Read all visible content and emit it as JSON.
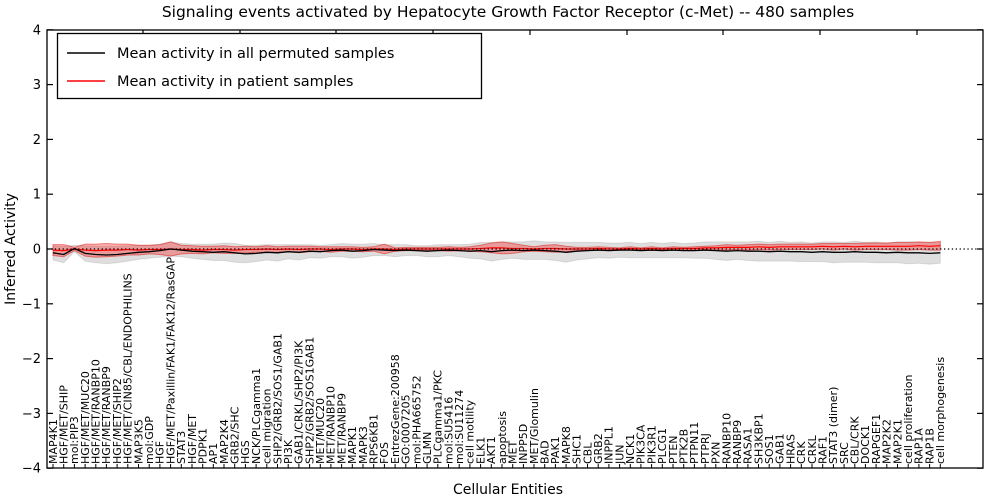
{
  "chart_data": {
    "type": "line",
    "title": "Signaling events activated by Hepatocyte Growth Factor Receptor (c-Met) -- 480 samples",
    "xlabel": "Cellular Entities",
    "ylabel": "Inferred Activity",
    "ylim": [
      -4,
      4
    ],
    "yticks": [
      4,
      3,
      2,
      1,
      0,
      -1,
      -2,
      -3,
      -4
    ],
    "grid": false,
    "legend_position": "upper left",
    "zero_line": {
      "style": "dotted",
      "color": "#000000"
    },
    "categories": [
      "MAP4K1",
      "HGF/MET/SHIP",
      "mol:PIP3",
      "HGF/MET/MUC20",
      "HGF/MET/RANBP10",
      "HGF/MET/RANBP9",
      "HGF/MET/SHIP2",
      "HGF/MET/CIN85/CBL/ENDOPHILINS",
      "MAP3K5",
      "mol:GDP",
      "HGF",
      "HGF/MET/Paxillin/FAK1/FAK12/RasGAP",
      "STAT3",
      "HGF/MET",
      "PDPK1",
      "AP1",
      "MAP2K4",
      "GRB2/SHC",
      "HGS",
      "NCK/PLCgamma1",
      "cell migration",
      "SHP2/GRB2/SOS1/GAB1",
      "PI3K",
      "GAB1/CRKL/SHP2/PI3K",
      "SHP2/GRB2/SOS1GAB1",
      "MET/MUC20",
      "MET/RANBP10",
      "MET/RANBP9",
      "MAPK1",
      "MAPK3",
      "RPS6KB1",
      "FOS",
      "EntrezGene:200958",
      "GO:0007205",
      "mol:PHA665752",
      "GLMN",
      "PLCgamma1/PKC",
      "mol:SU5416",
      "mol:SU11274",
      "cell motility",
      "ELK1",
      "AKT1",
      "apoptosis",
      "MET",
      "INPP5D",
      "MET/Glomulin",
      "BAD",
      "PAK1",
      "MAPK8",
      "SHC1",
      "CBL",
      "GRB2",
      "INPPL1",
      "JUN",
      "NCK1",
      "PIK3CA",
      "PIK3R1",
      "PLCG1",
      "PTEN",
      "PTK2B",
      "PTPN11",
      "PTPRJ",
      "PXN",
      "RANBP10",
      "RANBP9",
      "RASA1",
      "SH3KBP1",
      "SOS1",
      "GAB1",
      "HRAS",
      "CRK",
      "CRKL",
      "RAF1",
      "STAT3 (dimer)",
      "SRC",
      "CBL/CRK",
      "DOCK1",
      "RAPGEF1",
      "MAP2K2",
      "MAP2K1",
      "cell proliferation",
      "RAP1A",
      "RAP1B",
      "cell morphogenesis"
    ],
    "series": [
      {
        "name": "Mean activity in all permuted samples",
        "color": "#000000",
        "band_fill": "rgba(0,0,0,0.13)",
        "band_edge": "rgba(0,0,0,0.10)",
        "mean": [
          -0.07,
          -0.1,
          0.01,
          -0.08,
          -0.1,
          -0.11,
          -0.1,
          -0.08,
          -0.06,
          -0.05,
          -0.03,
          0.0,
          -0.02,
          -0.04,
          -0.05,
          -0.06,
          -0.05,
          -0.07,
          -0.09,
          -0.08,
          -0.06,
          -0.07,
          -0.05,
          -0.06,
          -0.04,
          -0.05,
          -0.03,
          -0.02,
          -0.04,
          -0.03,
          -0.01,
          -0.02,
          -0.03,
          -0.02,
          -0.03,
          -0.04,
          -0.03,
          -0.02,
          -0.03,
          -0.04,
          -0.03,
          -0.05,
          -0.03,
          -0.02,
          -0.03,
          -0.02,
          -0.03,
          -0.04,
          -0.06,
          -0.04,
          -0.03,
          -0.02,
          -0.03,
          -0.02,
          -0.02,
          -0.03,
          -0.02,
          -0.03,
          -0.02,
          -0.03,
          -0.03,
          -0.02,
          -0.03,
          -0.04,
          -0.03,
          -0.04,
          -0.04,
          -0.05,
          -0.04,
          -0.05,
          -0.05,
          -0.06,
          -0.05,
          -0.06,
          -0.06,
          -0.05,
          -0.06,
          -0.06,
          -0.07,
          -0.06,
          -0.07,
          -0.07,
          -0.08,
          -0.07
        ],
        "band_halfwidth": [
          0.13,
          0.15,
          0.06,
          0.14,
          0.15,
          0.16,
          0.15,
          0.14,
          0.13,
          0.12,
          0.12,
          0.13,
          0.12,
          0.13,
          0.14,
          0.15,
          0.16,
          0.17,
          0.16,
          0.15,
          0.14,
          0.15,
          0.13,
          0.14,
          0.12,
          0.12,
          0.11,
          0.12,
          0.13,
          0.12,
          0.11,
          0.1,
          0.11,
          0.1,
          0.09,
          0.1,
          0.11,
          0.1,
          0.11,
          0.13,
          0.15,
          0.17,
          0.16,
          0.15,
          0.16,
          0.17,
          0.16,
          0.17,
          0.18,
          0.16,
          0.15,
          0.14,
          0.14,
          0.13,
          0.14,
          0.13,
          0.14,
          0.13,
          0.14,
          0.13,
          0.14,
          0.15,
          0.16,
          0.17,
          0.16,
          0.17,
          0.18,
          0.17,
          0.18,
          0.17,
          0.18,
          0.17,
          0.18,
          0.19,
          0.18,
          0.19,
          0.18,
          0.19,
          0.18,
          0.19,
          0.2,
          0.19,
          0.2,
          0.19
        ]
      },
      {
        "name": "Mean activity in patient samples",
        "color": "#ff0000",
        "band_fill": "rgba(255,0,0,0.30)",
        "band_edge": "rgba(220,0,0,0.45)",
        "mean": [
          -0.02,
          -0.03,
          0.0,
          -0.02,
          -0.03,
          -0.02,
          -0.02,
          -0.01,
          -0.02,
          -0.01,
          -0.01,
          0.0,
          -0.01,
          -0.01,
          -0.02,
          -0.01,
          -0.01,
          -0.02,
          -0.01,
          -0.01,
          0.0,
          -0.01,
          0.0,
          -0.01,
          0.0,
          0.0,
          -0.01,
          0.0,
          0.0,
          -0.01,
          0.0,
          0.0,
          -0.01,
          0.0,
          0.0,
          0.0,
          0.0,
          0.0,
          0.0,
          0.0,
          0.01,
          0.02,
          0.02,
          0.01,
          0.01,
          0.0,
          0.01,
          0.01,
          0.0,
          0.0,
          0.0,
          0.01,
          0.0,
          0.0,
          0.01,
          0.0,
          0.01,
          0.0,
          0.01,
          0.01,
          0.01,
          0.02,
          0.02,
          0.03,
          0.03,
          0.03,
          0.04,
          0.03,
          0.04,
          0.04,
          0.04,
          0.04,
          0.05,
          0.04,
          0.05,
          0.04,
          0.05,
          0.05,
          0.05,
          0.05,
          0.05,
          0.06,
          0.05,
          0.06
        ],
        "band_halfwidth": [
          0.1,
          0.11,
          0.03,
          0.11,
          0.12,
          0.12,
          0.11,
          0.1,
          0.09,
          0.08,
          0.09,
          0.13,
          0.08,
          0.07,
          0.07,
          0.06,
          0.07,
          0.06,
          0.06,
          0.05,
          0.06,
          0.05,
          0.05,
          0.06,
          0.05,
          0.04,
          0.05,
          0.04,
          0.04,
          0.04,
          0.04,
          0.09,
          0.03,
          0.03,
          0.03,
          0.03,
          0.03,
          0.04,
          0.03,
          0.04,
          0.06,
          0.09,
          0.11,
          0.09,
          0.06,
          0.04,
          0.06,
          0.07,
          0.05,
          0.03,
          0.03,
          0.03,
          0.03,
          0.02,
          0.03,
          0.02,
          0.03,
          0.02,
          0.03,
          0.02,
          0.03,
          0.03,
          0.04,
          0.05,
          0.04,
          0.05,
          0.05,
          0.05,
          0.05,
          0.05,
          0.05,
          0.05,
          0.05,
          0.06,
          0.05,
          0.06,
          0.06,
          0.06,
          0.06,
          0.07,
          0.07,
          0.07,
          0.07,
          0.08
        ]
      }
    ]
  }
}
